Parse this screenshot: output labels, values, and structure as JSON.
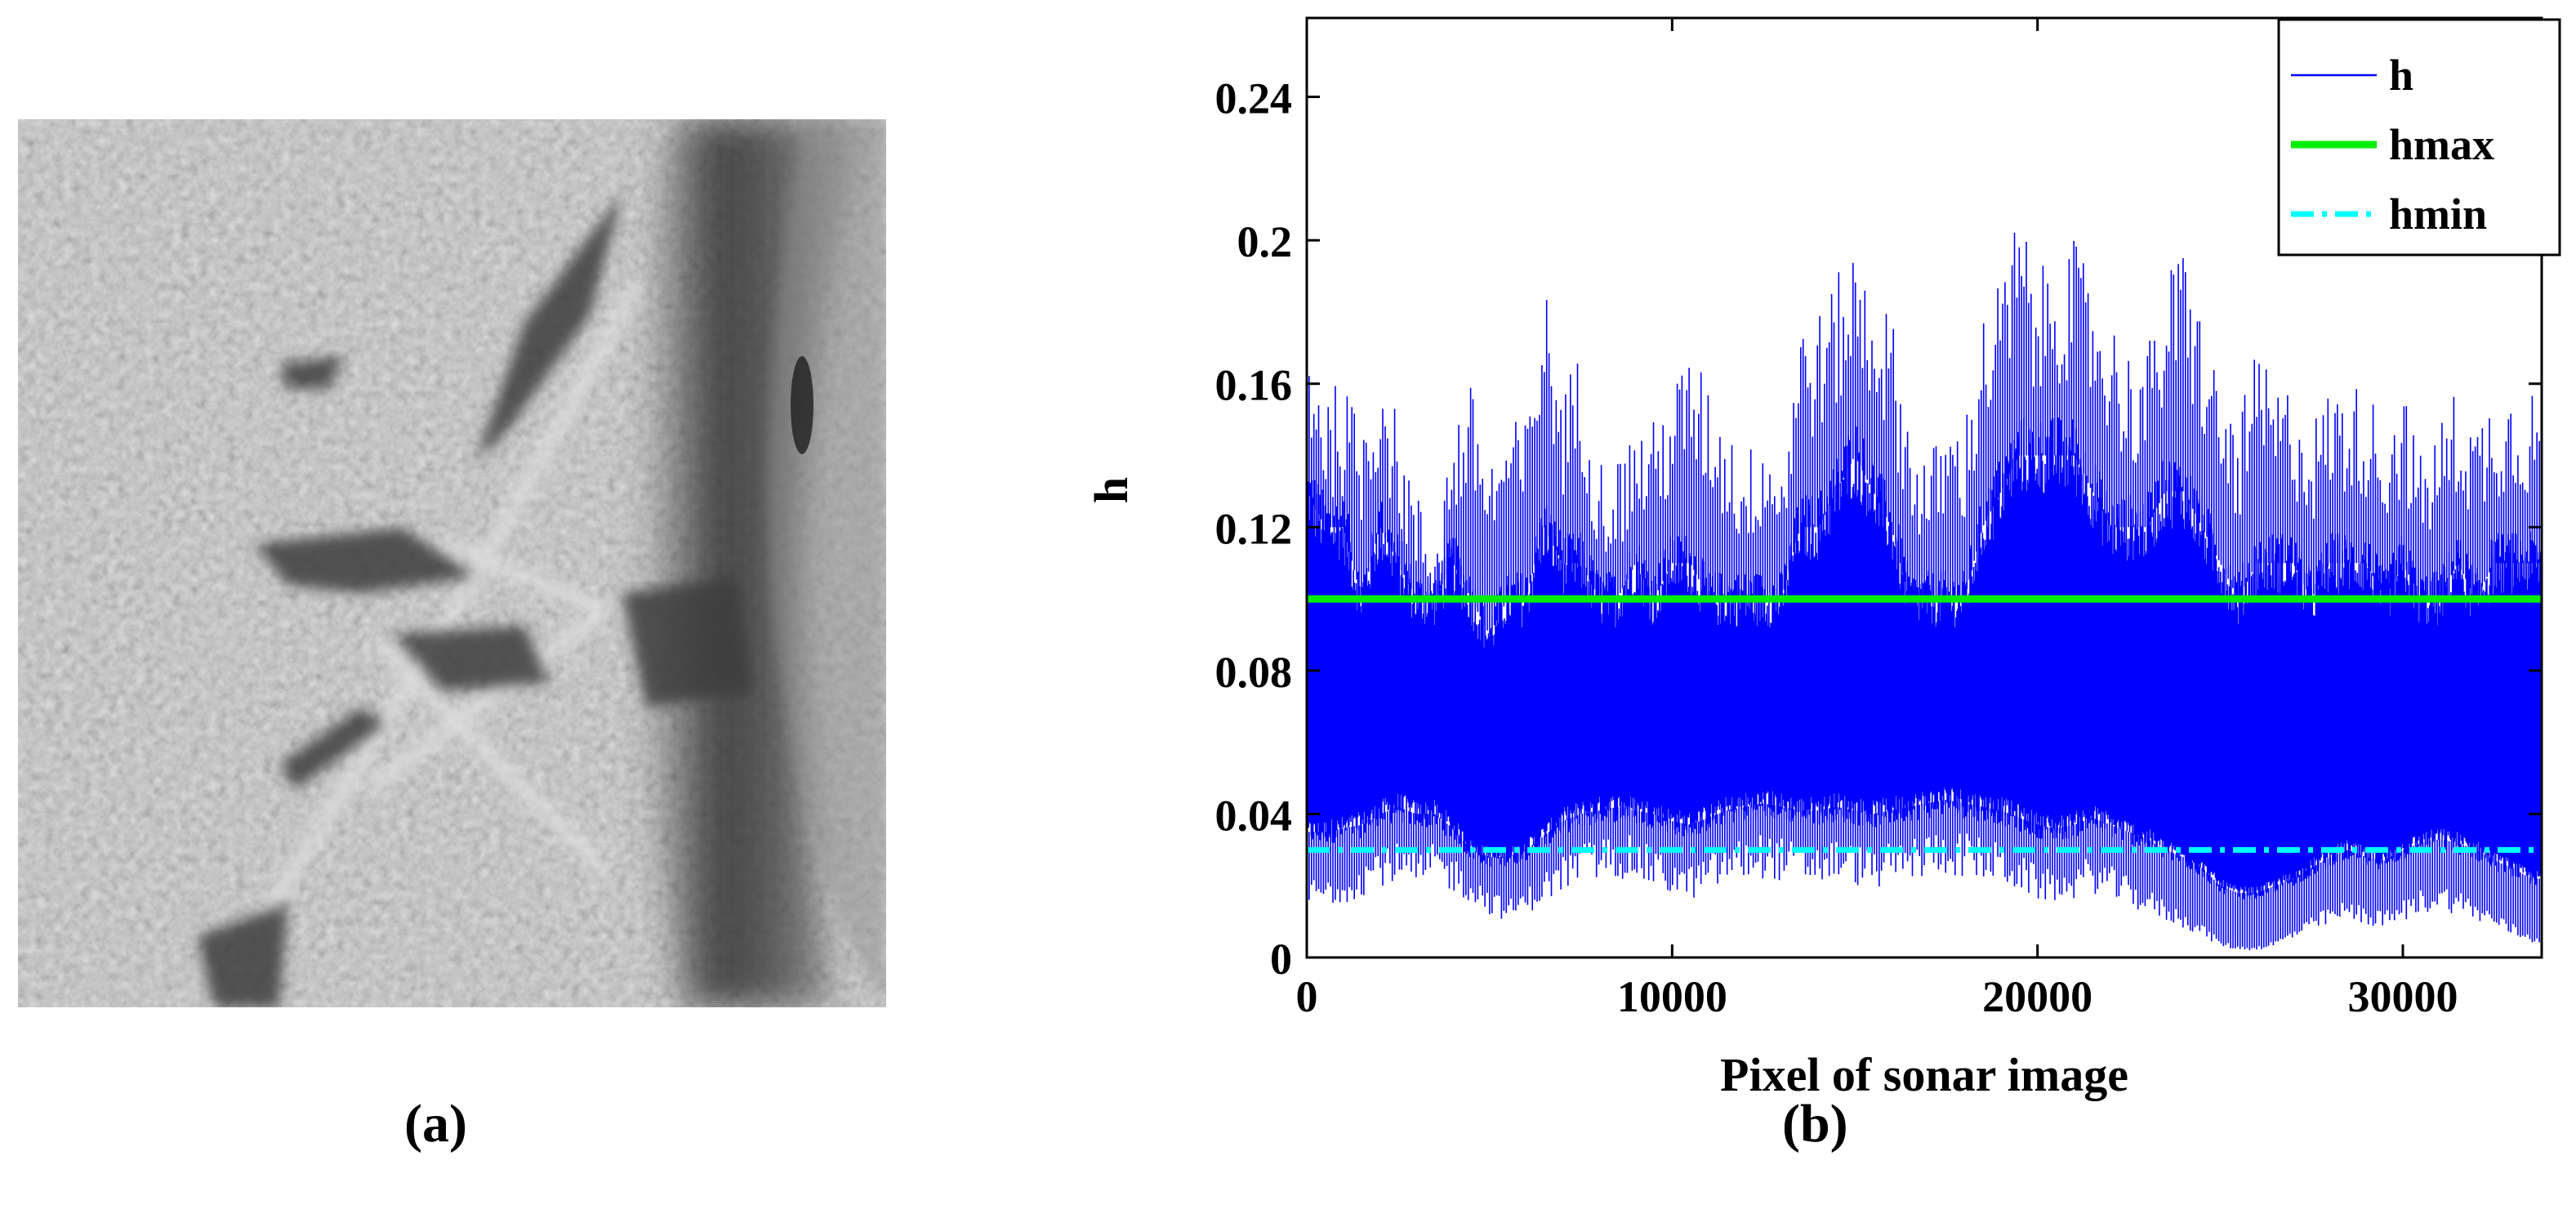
{
  "panels": {
    "a_label": "(a)",
    "b_label": "(b)",
    "a_content": "grayscale sonar image"
  },
  "chart_data": {
    "type": "line",
    "xlabel": "Pixel of sonar image",
    "ylabel": "h",
    "xlim": [
      0,
      33800
    ],
    "ylim": [
      0,
      0.262
    ],
    "xticks": [
      0,
      10000,
      20000,
      30000
    ],
    "xtick_labels": [
      "0",
      "10000",
      "20000",
      "30000"
    ],
    "yticks": [
      0,
      0.04,
      0.08,
      0.12,
      0.16,
      0.2,
      0.24
    ],
    "ytick_labels": [
      "0",
      "0.04",
      "0.08",
      "0.12",
      "0.16",
      "0.2",
      "0.24"
    ],
    "grid": false,
    "legend_position": "top-right",
    "colors": {
      "h": "#0000ff",
      "hmax": "#00ee00",
      "hmin": "#00ffff"
    },
    "series": [
      {
        "name": "h",
        "style": "thin solid line, dense oscillation between lower and upper envelope",
        "x": [
          0,
          500,
          1000,
          1500,
          2000,
          2500,
          3000,
          3500,
          4000,
          4500,
          5000,
          5500,
          6000,
          6500,
          7000,
          7500,
          8000,
          8500,
          9000,
          9500,
          10000,
          10500,
          11000,
          11500,
          12000,
          12500,
          13000,
          13500,
          14000,
          14500,
          15000,
          15500,
          16000,
          16500,
          17000,
          17500,
          18000,
          18500,
          19000,
          19500,
          20000,
          20500,
          21000,
          21500,
          22000,
          22500,
          23000,
          23500,
          24000,
          24500,
          25000,
          25500,
          26000,
          26500,
          27000,
          27500,
          28000,
          28500,
          29000,
          29500,
          30000,
          30500,
          31000,
          31500,
          32000,
          32500,
          33000,
          33500
        ],
        "upper": [
          0.18,
          0.16,
          0.16,
          0.15,
          0.17,
          0.15,
          0.13,
          0.12,
          0.15,
          0.16,
          0.14,
          0.15,
          0.15,
          0.19,
          0.16,
          0.17,
          0.14,
          0.14,
          0.15,
          0.15,
          0.16,
          0.17,
          0.16,
          0.15,
          0.14,
          0.15,
          0.14,
          0.18,
          0.18,
          0.19,
          0.2,
          0.19,
          0.18,
          0.15,
          0.14,
          0.15,
          0.15,
          0.18,
          0.19,
          0.21,
          0.19,
          0.2,
          0.2,
          0.19,
          0.18,
          0.17,
          0.17,
          0.19,
          0.2,
          0.18,
          0.16,
          0.15,
          0.17,
          0.16,
          0.16,
          0.15,
          0.16,
          0.16,
          0.16,
          0.15,
          0.16,
          0.14,
          0.15,
          0.16,
          0.15,
          0.16,
          0.16,
          0.16
        ],
        "lower": [
          0.014,
          0.014,
          0.015,
          0.017,
          0.02,
          0.02,
          0.018,
          0.02,
          0.018,
          0.015,
          0.012,
          0.01,
          0.012,
          0.015,
          0.018,
          0.02,
          0.021,
          0.022,
          0.021,
          0.019,
          0.017,
          0.016,
          0.018,
          0.02,
          0.021,
          0.022,
          0.021,
          0.02,
          0.02,
          0.021,
          0.02,
          0.019,
          0.02,
          0.021,
          0.022,
          0.023,
          0.022,
          0.021,
          0.02,
          0.018,
          0.016,
          0.015,
          0.016,
          0.018,
          0.016,
          0.014,
          0.012,
          0.01,
          0.008,
          0.006,
          0.003,
          0.002,
          0.002,
          0.003,
          0.005,
          0.007,
          0.009,
          0.01,
          0.009,
          0.008,
          0.01,
          0.012,
          0.013,
          0.012,
          0.01,
          0.008,
          0.006,
          0.004
        ],
        "core_upper": [
          0.13,
          0.12,
          0.12,
          0.1,
          0.12,
          0.11,
          0.1,
          0.1,
          0.11,
          0.1,
          0.09,
          0.1,
          0.1,
          0.12,
          0.11,
          0.11,
          0.1,
          0.1,
          0.11,
          0.1,
          0.11,
          0.11,
          0.1,
          0.1,
          0.1,
          0.1,
          0.1,
          0.12,
          0.12,
          0.13,
          0.14,
          0.13,
          0.12,
          0.1,
          0.1,
          0.1,
          0.1,
          0.12,
          0.13,
          0.14,
          0.14,
          0.14,
          0.14,
          0.13,
          0.12,
          0.12,
          0.12,
          0.13,
          0.13,
          0.12,
          0.11,
          0.1,
          0.11,
          0.11,
          0.11,
          0.1,
          0.11,
          0.11,
          0.11,
          0.1,
          0.11,
          0.1,
          0.1,
          0.11,
          0.1,
          0.11,
          0.11,
          0.11
        ],
        "core_lower": [
          0.035,
          0.035,
          0.036,
          0.037,
          0.04,
          0.042,
          0.04,
          0.04,
          0.036,
          0.03,
          0.028,
          0.028,
          0.03,
          0.034,
          0.038,
          0.04,
          0.041,
          0.042,
          0.041,
          0.04,
          0.038,
          0.037,
          0.039,
          0.041,
          0.042,
          0.043,
          0.042,
          0.041,
          0.041,
          0.042,
          0.041,
          0.04,
          0.041,
          0.042,
          0.043,
          0.044,
          0.043,
          0.042,
          0.041,
          0.039,
          0.037,
          0.036,
          0.037,
          0.039,
          0.037,
          0.035,
          0.033,
          0.03,
          0.028,
          0.025,
          0.02,
          0.018,
          0.018,
          0.02,
          0.022,
          0.025,
          0.028,
          0.03,
          0.028,
          0.027,
          0.03,
          0.032,
          0.033,
          0.032,
          0.03,
          0.027,
          0.025,
          0.022
        ]
      },
      {
        "name": "hmax",
        "value": 0.1,
        "style": "solid thick line"
      },
      {
        "name": "hmin",
        "value": 0.03,
        "style": "dash-dot thick line"
      }
    ]
  }
}
